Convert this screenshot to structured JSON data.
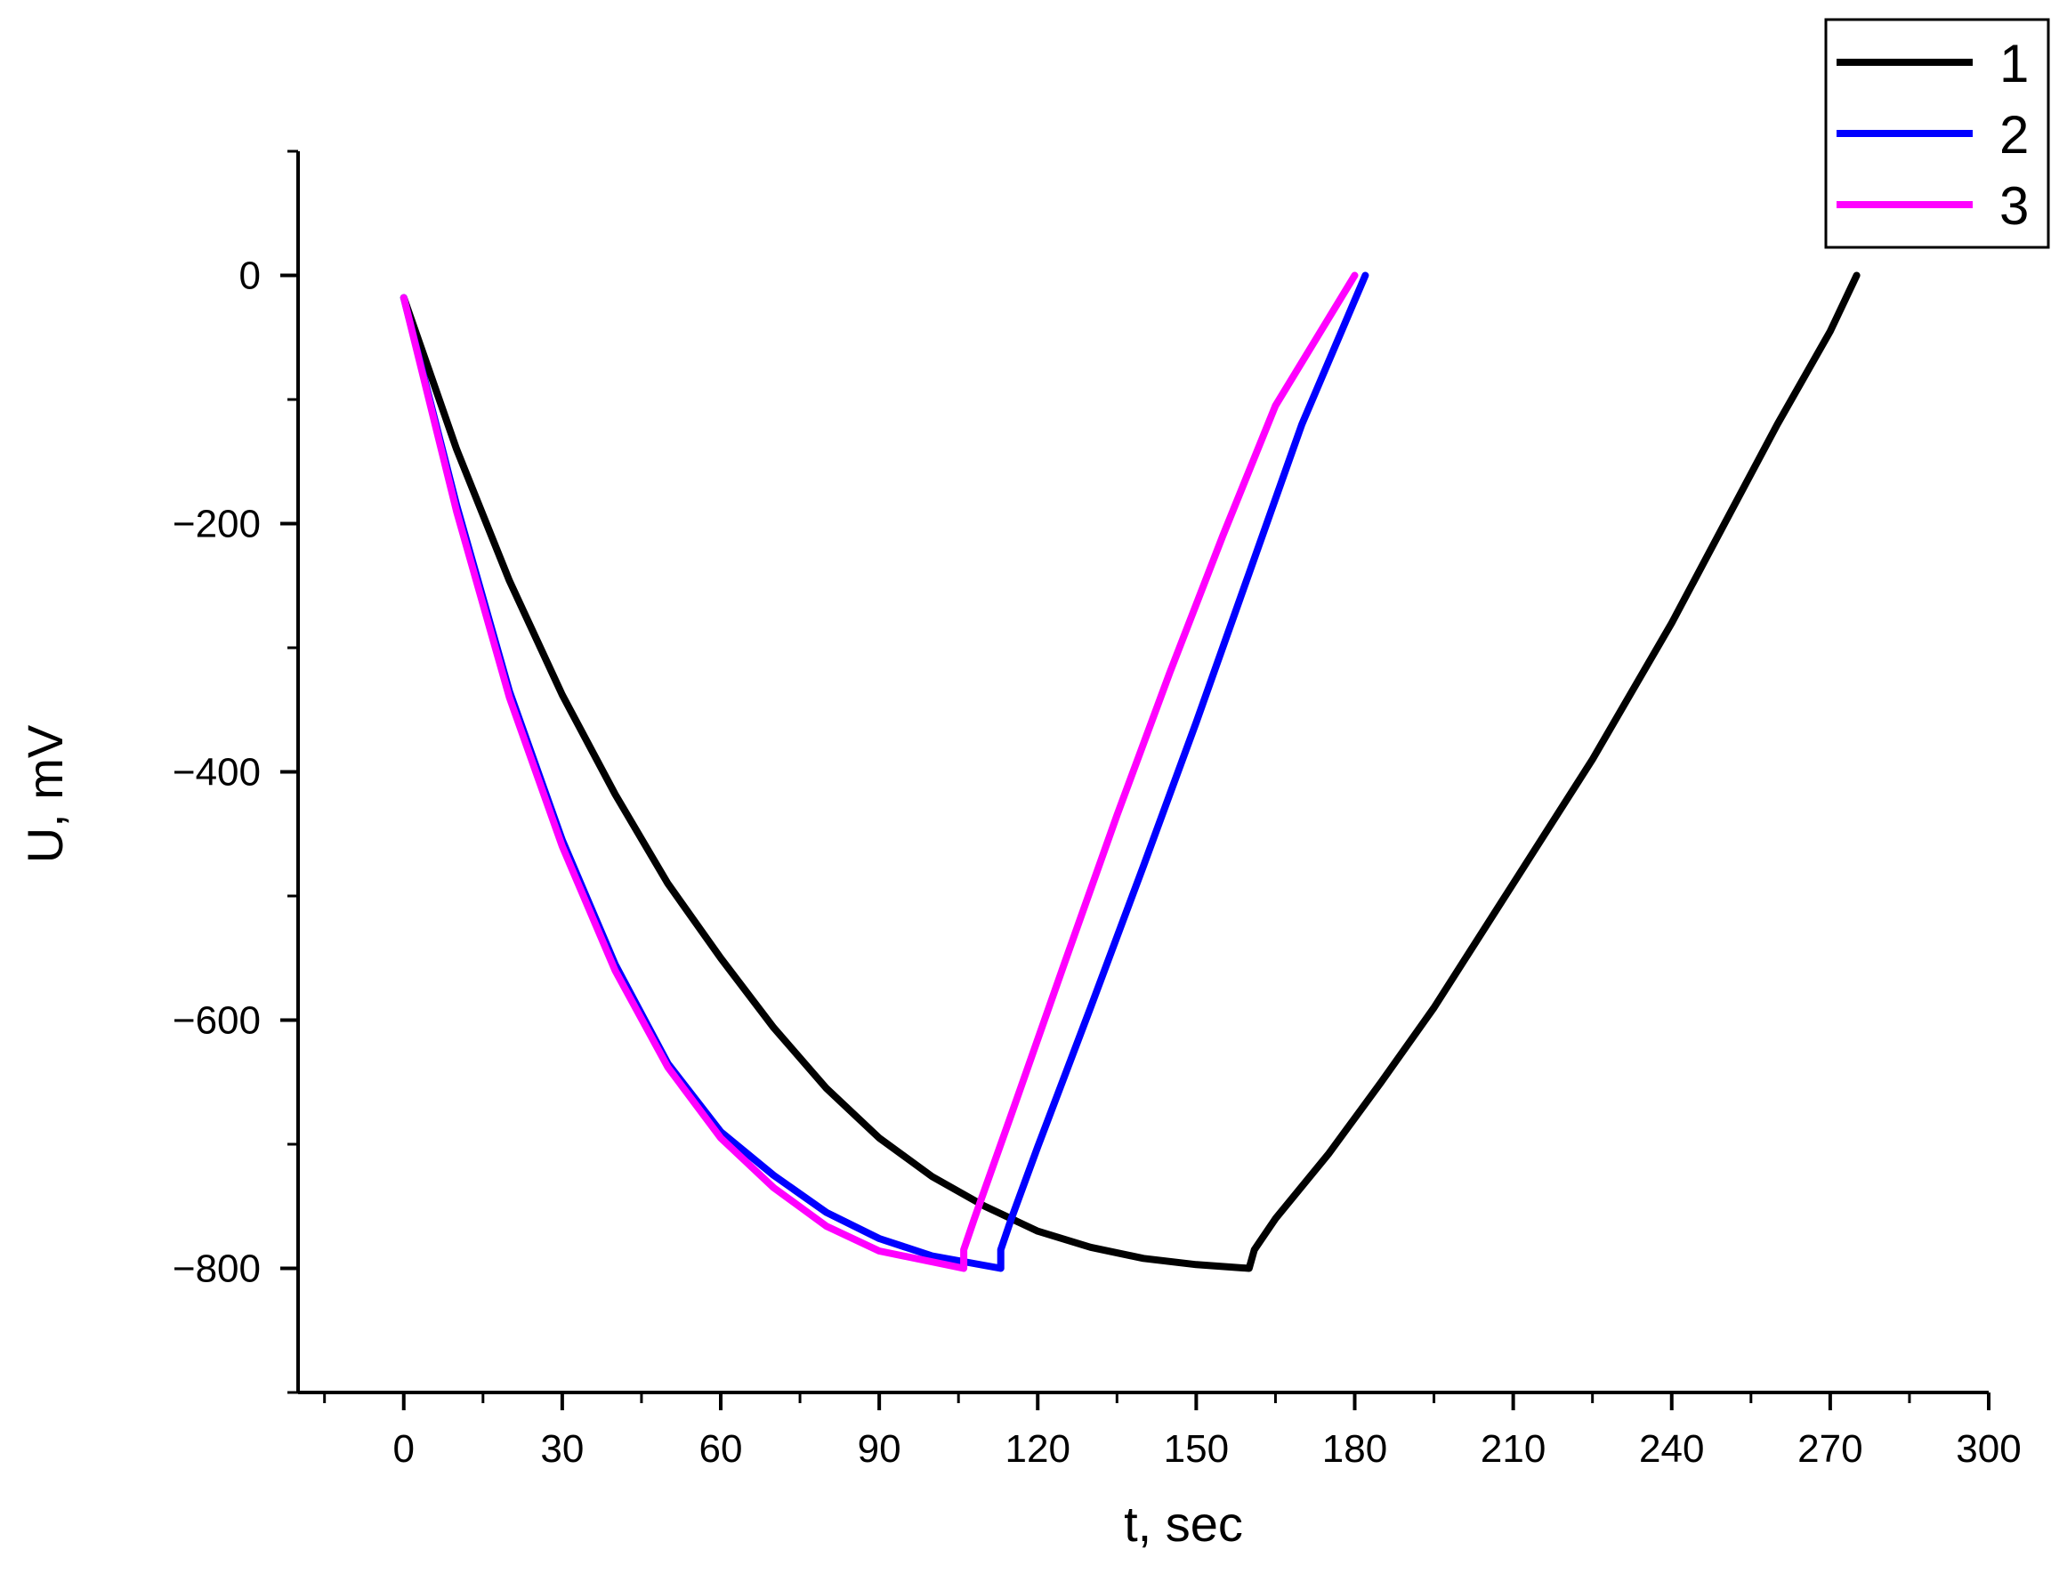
{
  "chart_data": {
    "type": "line",
    "title": "",
    "xlabel": "t, sec",
    "ylabel": "U, mV",
    "xlim": [
      -20,
      300
    ],
    "ylim": [
      -900,
      100
    ],
    "x_ticks": [
      0,
      30,
      60,
      90,
      120,
      150,
      180,
      210,
      240,
      270,
      300
    ],
    "y_ticks": [
      0,
      -200,
      -400,
      -600,
      -800
    ],
    "x_tick_labels": [
      "0",
      "30",
      "60",
      "90",
      "120",
      "150",
      "180",
      "210",
      "240",
      "270",
      "300"
    ],
    "y_tick_labels": [
      "0",
      "−200",
      "−400",
      "−600",
      "−800"
    ],
    "grid": false,
    "legend_position": "top-right",
    "series": [
      {
        "name": "1",
        "color": "#000000",
        "points": [
          [
            0,
            -18
          ],
          [
            10,
            -140
          ],
          [
            20,
            -246
          ],
          [
            30,
            -338
          ],
          [
            40,
            -418
          ],
          [
            50,
            -490
          ],
          [
            60,
            -550
          ],
          [
            70,
            -606
          ],
          [
            80,
            -655
          ],
          [
            90,
            -695
          ],
          [
            100,
            -726
          ],
          [
            110,
            -750
          ],
          [
            120,
            -770
          ],
          [
            130,
            -783
          ],
          [
            140,
            -792
          ],
          [
            150,
            -797
          ],
          [
            160,
            -800
          ],
          [
            161,
            -785
          ],
          [
            165,
            -760
          ],
          [
            175,
            -708
          ],
          [
            185,
            -650
          ],
          [
            195,
            -590
          ],
          [
            210,
            -490
          ],
          [
            225,
            -390
          ],
          [
            240,
            -280
          ],
          [
            250,
            -200
          ],
          [
            260,
            -120
          ],
          [
            270,
            -45
          ],
          [
            275,
            0
          ]
        ]
      },
      {
        "name": "2",
        "color": "#0000ff",
        "points": [
          [
            0,
            -18
          ],
          [
            10,
            -185
          ],
          [
            20,
            -335
          ],
          [
            30,
            -455
          ],
          [
            40,
            -555
          ],
          [
            50,
            -635
          ],
          [
            60,
            -690
          ],
          [
            70,
            -725
          ],
          [
            80,
            -755
          ],
          [
            90,
            -776
          ],
          [
            100,
            -790
          ],
          [
            113,
            -800
          ],
          [
            113,
            -785
          ],
          [
            115,
            -760
          ],
          [
            120,
            -702
          ],
          [
            130,
            -590
          ],
          [
            140,
            -476
          ],
          [
            150,
            -360
          ],
          [
            160,
            -240
          ],
          [
            170,
            -120
          ],
          [
            182,
            0
          ]
        ]
      },
      {
        "name": "3",
        "color": "#ff00ff",
        "points": [
          [
            0,
            -18
          ],
          [
            10,
            -190
          ],
          [
            20,
            -340
          ],
          [
            30,
            -460
          ],
          [
            40,
            -560
          ],
          [
            50,
            -638
          ],
          [
            60,
            -695
          ],
          [
            70,
            -735
          ],
          [
            80,
            -766
          ],
          [
            90,
            -786
          ],
          [
            106,
            -800
          ],
          [
            106,
            -785
          ],
          [
            108,
            -760
          ],
          [
            115,
            -676
          ],
          [
            125,
            -555
          ],
          [
            135,
            -435
          ],
          [
            145,
            -320
          ],
          [
            155,
            -210
          ],
          [
            165,
            -105
          ],
          [
            180,
            0
          ]
        ]
      }
    ]
  }
}
